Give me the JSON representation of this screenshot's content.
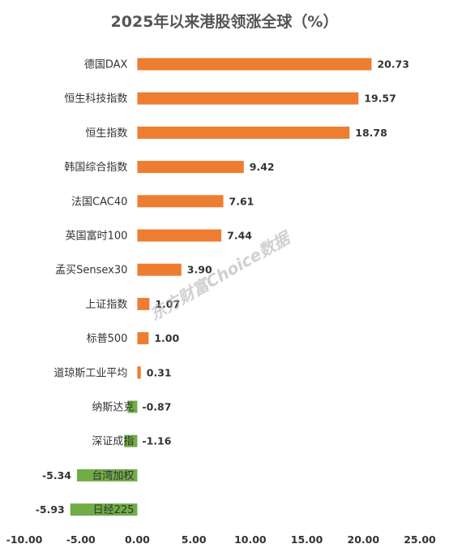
{
  "chart_data": {
    "type": "bar",
    "orientation": "horizontal",
    "title": "2025年以来港股领涨全球（%）",
    "categories": [
      "德国DAX",
      "恒生科技指数",
      "恒生指数",
      "韩国综合指数",
      "法国CAC40",
      "英国富时100",
      "孟买Sensex30",
      "上证指数",
      "标普500",
      "道琼斯工业平均",
      "纳斯达克",
      "深证成指",
      "台湾加权",
      "日经225"
    ],
    "values": [
      20.73,
      19.57,
      18.78,
      9.42,
      7.61,
      7.44,
      3.9,
      1.07,
      1.0,
      0.31,
      -0.87,
      -1.16,
      -5.34,
      -5.93
    ],
    "value_labels": [
      "20.73",
      "19.57",
      "18.78",
      "9.42",
      "7.61",
      "7.44",
      "3.90",
      "1.07",
      "1.00",
      "0.31",
      "-0.87",
      "-1.16",
      "-5.34",
      "-5.93"
    ],
    "x_ticks": [
      "-10.00",
      "-5.00",
      "0.00",
      "5.00",
      "10.00",
      "15.00",
      "20.00",
      "25.00"
    ],
    "xlim": [
      -10,
      25
    ],
    "grid": false,
    "colors": {
      "positive": "#ED7D31",
      "negative": "#70AD47"
    }
  },
  "watermark": "东方财富Choice数据"
}
